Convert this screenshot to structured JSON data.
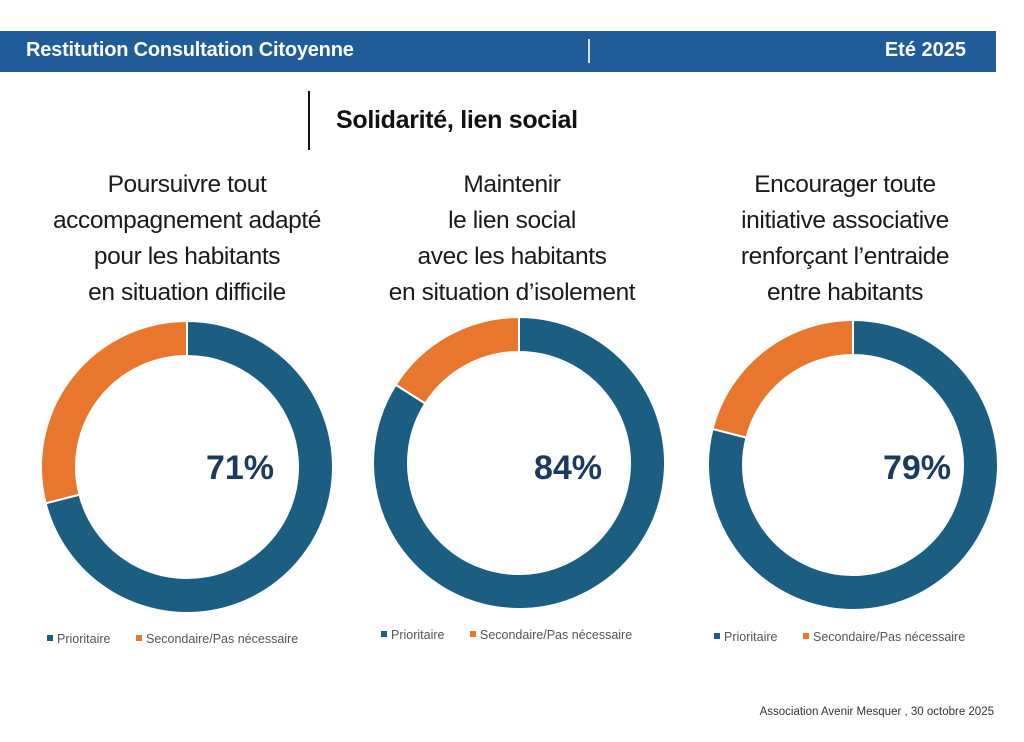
{
  "header": {
    "title": "Restitution Consultation Citoyenne",
    "season": "Eté 2025",
    "color": "#1f5c99"
  },
  "section": {
    "title": "Solidarité, lien social"
  },
  "legend": {
    "primary": "Prioritaire",
    "secondary": "Secondaire/Pas nécessaire"
  },
  "colors": {
    "primary": "#1b5e82",
    "secondary": "#e8762d",
    "value_text": "#1b3a5c"
  },
  "panels": [
    {
      "title_lines": [
        "Poursuivre tout",
        "accompagnement adapté",
        "pour les habitants",
        "en situation difficile"
      ],
      "label": "71%"
    },
    {
      "title_lines": [
        "Maintenir",
        "le lien social",
        "avec les habitants",
        "en situation d’isolement"
      ],
      "label": "84%"
    },
    {
      "title_lines": [
        "Encourager toute",
        "initiative associative",
        "renforçant l’entraide",
        "entre habitants"
      ],
      "label": "79%"
    }
  ],
  "chart_data": [
    {
      "type": "pie",
      "variant": "donut",
      "title": "Poursuivre tout accompagnement adapté pour les habitants en situation difficile",
      "categories": [
        "Prioritaire",
        "Secondaire/Pas nécessaire"
      ],
      "values": [
        71,
        29
      ],
      "center_label": "71%",
      "legend": "bottom"
    },
    {
      "type": "pie",
      "variant": "donut",
      "title": "Maintenir le lien social avec les habitants en situation d’isolement",
      "categories": [
        "Prioritaire",
        "Secondaire/Pas nécessaire"
      ],
      "values": [
        84,
        16
      ],
      "center_label": "84%",
      "legend": "bottom"
    },
    {
      "type": "pie",
      "variant": "donut",
      "title": "Encourager toute initiative associative renforçant l’entraide entre habitants",
      "categories": [
        "Prioritaire",
        "Secondaire/Pas nécessaire"
      ],
      "values": [
        79,
        21
      ],
      "center_label": "79%",
      "legend": "bottom"
    }
  ],
  "footer": {
    "text": "Association Avenir Mesquer , 30 octobre 2025"
  }
}
